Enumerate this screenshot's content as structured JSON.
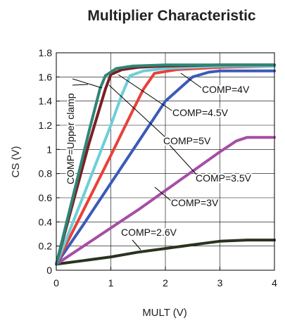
{
  "chart_data": {
    "type": "line",
    "title": "Multiplier Characteristic",
    "xlabel": "MULT (V)",
    "ylabel": "CS (V)",
    "xlim": [
      0,
      4
    ],
    "ylim": [
      0,
      1.8
    ],
    "xticks": [
      0,
      1,
      2,
      3,
      4
    ],
    "yticks": [
      0,
      0.2,
      0.4,
      0.6,
      0.8,
      1,
      1.2,
      1.4,
      1.6,
      1.8
    ],
    "xtick_labels": [
      "0",
      "1",
      "2",
      "3",
      "4"
    ],
    "ytick_labels": [
      "0",
      "0.2",
      "0.4",
      "0.6",
      "0.8",
      "1",
      "1.2",
      "1.4",
      "1.6",
      "1.8"
    ],
    "grid": true,
    "series": [
      {
        "name": "COMP=2.6V",
        "color": "#2a3320",
        "x": [
          0,
          0.5,
          1,
          1.5,
          2,
          2.5,
          3,
          3.5,
          4
        ],
        "y": [
          0.05,
          0.08,
          0.11,
          0.15,
          0.18,
          0.21,
          0.24,
          0.25,
          0.25
        ]
      },
      {
        "name": "COMP=3V",
        "color": "#a64ea6",
        "x": [
          0,
          0.5,
          1,
          1.5,
          2,
          2.5,
          3,
          3.3,
          3.5,
          4
        ],
        "y": [
          0.05,
          0.2,
          0.35,
          0.5,
          0.66,
          0.82,
          0.98,
          1.07,
          1.1,
          1.1
        ]
      },
      {
        "name": "COMP=3.5V",
        "color": "#3a5bb8",
        "x": [
          0,
          0.5,
          1,
          1.5,
          2,
          2.5,
          2.8,
          3,
          4
        ],
        "y": [
          0.05,
          0.38,
          0.72,
          1.06,
          1.4,
          1.6,
          1.64,
          1.65,
          1.65
        ]
      },
      {
        "name": "COMP=4V",
        "color": "#e8413a",
        "x": [
          0,
          0.5,
          1,
          1.4,
          1.6,
          1.8,
          2.2,
          3,
          4
        ],
        "y": [
          0.05,
          0.5,
          0.95,
          1.32,
          1.5,
          1.63,
          1.66,
          1.68,
          1.69
        ]
      },
      {
        "name": "COMP=4.5V",
        "color": "#6ccfd8",
        "x": [
          0,
          0.5,
          1,
          1.2,
          1.35,
          1.6,
          2,
          3,
          4
        ],
        "y": [
          0.05,
          0.62,
          1.2,
          1.45,
          1.61,
          1.65,
          1.67,
          1.69,
          1.69
        ]
      },
      {
        "name": "COMP=5V",
        "color": "#7a1f24",
        "x": [
          0,
          0.3,
          0.6,
          0.9,
          1.0,
          1.2,
          1.5,
          2,
          3,
          4
        ],
        "y": [
          0.05,
          0.55,
          1.05,
          1.5,
          1.62,
          1.66,
          1.68,
          1.69,
          1.7,
          1.7
        ]
      },
      {
        "name": "COMP=Upper clamp",
        "color": "#2e8576",
        "x": [
          0,
          0.3,
          0.6,
          0.8,
          0.9,
          1.1,
          1.4,
          2,
          3,
          4
        ],
        "y": [
          0.05,
          0.6,
          1.15,
          1.5,
          1.61,
          1.67,
          1.69,
          1.7,
          1.7,
          1.7
        ]
      }
    ],
    "annotations": [
      {
        "text": "COMP=Upper clamp",
        "series": "COMP=Upper clamp"
      },
      {
        "text": "COMP=4V",
        "series": "COMP=4V"
      },
      {
        "text": "COMP=4.5V",
        "series": "COMP=4.5V"
      },
      {
        "text": "COMP=5V",
        "series": "COMP=5V"
      },
      {
        "text": "COMP=3.5V",
        "series": "COMP=3.5V"
      },
      {
        "text": "COMP=3V",
        "series": "COMP=3V"
      },
      {
        "text": "COMP=2.6V",
        "series": "COMP=2.6V"
      }
    ]
  }
}
